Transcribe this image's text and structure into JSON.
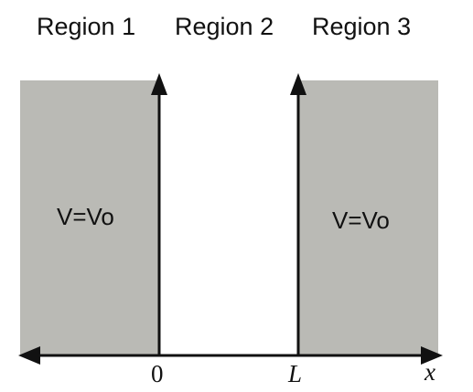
{
  "regions": [
    {
      "label": "Region 1"
    },
    {
      "label": "Region 2"
    },
    {
      "label": "Region 3"
    }
  ],
  "potential": {
    "left": "V=Vo",
    "right": "V=Vo"
  },
  "axis": {
    "origin_label": "0",
    "well_edge_label": "L",
    "variable_label": "x"
  },
  "colors": {
    "barrier_fill": "#babab5",
    "axis": "#111111",
    "background": "#ffffff"
  }
}
